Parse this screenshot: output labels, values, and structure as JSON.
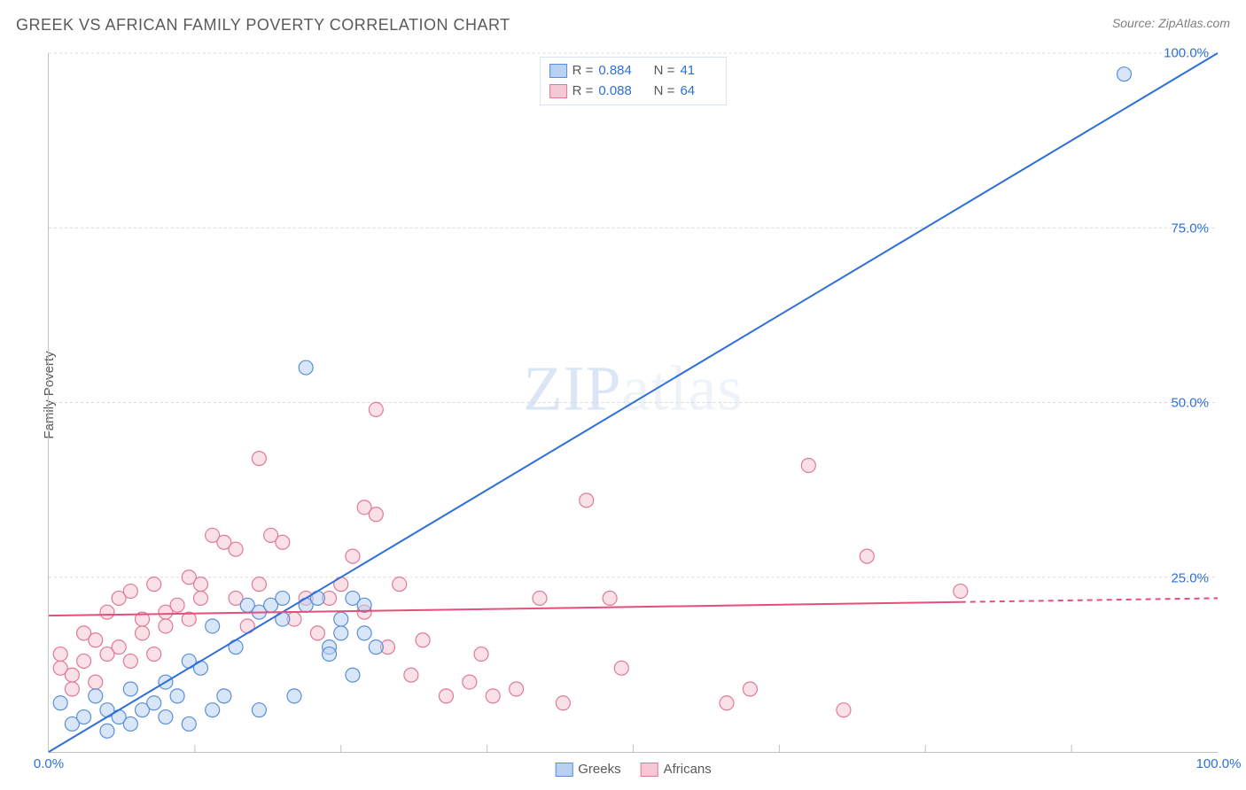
{
  "title": "GREEK VS AFRICAN FAMILY POVERTY CORRELATION CHART",
  "source_prefix": "Source: ",
  "source_name": "ZipAtlas.com",
  "ylabel": "Family Poverty",
  "watermark_a": "ZIP",
  "watermark_b": "atlas",
  "chart": {
    "type": "scatter",
    "xlim": [
      0,
      100
    ],
    "ylim": [
      0,
      100
    ],
    "x_tick_origin": "0.0%",
    "x_tick_max": "100.0%",
    "x_minor_step": 12.5,
    "y_ticks": [
      25,
      50,
      75,
      100
    ],
    "y_tick_labels": [
      "25.0%",
      "50.0%",
      "75.0%",
      "100.0%"
    ],
    "grid_color": "#d9d9d9",
    "grid_dash": "3,3",
    "axis_color": "#c0c0c0",
    "background_color": "#ffffff",
    "tick_label_color": "#2e6fd9",
    "marker_radius": 8,
    "marker_stroke_width": 1.2,
    "line_width": 2,
    "series": [
      {
        "name": "Greeks",
        "fill": "#b9d1f0",
        "stroke": "#5a8fd9",
        "fill_opacity": 0.55,
        "line_color": "#2e6fd9",
        "trend": {
          "x1": 0,
          "y1": 0,
          "x2": 100,
          "y2": 100,
          "dash_after_x": null
        },
        "R": "0.884",
        "N": "41",
        "points": [
          [
            1,
            7
          ],
          [
            2,
            4
          ],
          [
            3,
            5
          ],
          [
            4,
            8
          ],
          [
            5,
            3
          ],
          [
            5,
            6
          ],
          [
            6,
            5
          ],
          [
            7,
            9
          ],
          [
            7,
            4
          ],
          [
            8,
            6
          ],
          [
            9,
            7
          ],
          [
            10,
            5
          ],
          [
            10,
            10
          ],
          [
            11,
            8
          ],
          [
            12,
            4
          ],
          [
            12,
            13
          ],
          [
            13,
            12
          ],
          [
            14,
            6
          ],
          [
            14,
            18
          ],
          [
            15,
            8
          ],
          [
            16,
            15
          ],
          [
            17,
            21
          ],
          [
            18,
            6
          ],
          [
            18,
            20
          ],
          [
            19,
            21
          ],
          [
            20,
            19
          ],
          [
            20,
            22
          ],
          [
            21,
            8
          ],
          [
            22,
            21
          ],
          [
            22,
            55
          ],
          [
            23,
            22
          ],
          [
            24,
            15
          ],
          [
            24,
            14
          ],
          [
            25,
            17
          ],
          [
            25,
            19
          ],
          [
            26,
            22
          ],
          [
            26,
            11
          ],
          [
            27,
            21
          ],
          [
            27,
            17
          ],
          [
            28,
            15
          ],
          [
            92,
            97
          ]
        ]
      },
      {
        "name": "Africans",
        "fill": "#f6c7d4",
        "stroke": "#e07a94",
        "fill_opacity": 0.55,
        "line_color": "#e54f7b",
        "trend": {
          "x1": 0,
          "y1": 19.5,
          "x2": 100,
          "y2": 22.0,
          "dash_after_x": 78
        },
        "R": "0.088",
        "N": "64",
        "points": [
          [
            1,
            12
          ],
          [
            1,
            14
          ],
          [
            2,
            11
          ],
          [
            2,
            9
          ],
          [
            3,
            17
          ],
          [
            3,
            13
          ],
          [
            4,
            16
          ],
          [
            4,
            10
          ],
          [
            5,
            14
          ],
          [
            5,
            20
          ],
          [
            6,
            22
          ],
          [
            6,
            15
          ],
          [
            7,
            13
          ],
          [
            7,
            23
          ],
          [
            8,
            17
          ],
          [
            8,
            19
          ],
          [
            9,
            14
          ],
          [
            9,
            24
          ],
          [
            10,
            20
          ],
          [
            10,
            18
          ],
          [
            11,
            21
          ],
          [
            12,
            25
          ],
          [
            12,
            19
          ],
          [
            13,
            22
          ],
          [
            13,
            24
          ],
          [
            14,
            31
          ],
          [
            15,
            30
          ],
          [
            16,
            22
          ],
          [
            16,
            29
          ],
          [
            17,
            18
          ],
          [
            18,
            24
          ],
          [
            18,
            42
          ],
          [
            19,
            31
          ],
          [
            20,
            30
          ],
          [
            21,
            19
          ],
          [
            22,
            22
          ],
          [
            23,
            17
          ],
          [
            24,
            22
          ],
          [
            25,
            24
          ],
          [
            26,
            28
          ],
          [
            27,
            20
          ],
          [
            27,
            35
          ],
          [
            28,
            49
          ],
          [
            28,
            34
          ],
          [
            29,
            15
          ],
          [
            30,
            24
          ],
          [
            31,
            11
          ],
          [
            32,
            16
          ],
          [
            34,
            8
          ],
          [
            36,
            10
          ],
          [
            37,
            14
          ],
          [
            38,
            8
          ],
          [
            40,
            9
          ],
          [
            42,
            22
          ],
          [
            44,
            7
          ],
          [
            46,
            36
          ],
          [
            48,
            22
          ],
          [
            49,
            12
          ],
          [
            58,
            7
          ],
          [
            60,
            9
          ],
          [
            65,
            41
          ],
          [
            68,
            6
          ],
          [
            70,
            28
          ],
          [
            78,
            23
          ]
        ]
      }
    ],
    "stats_labels": {
      "R": "R =",
      "N": "N ="
    },
    "bottom_legend": [
      "Greeks",
      "Africans"
    ]
  }
}
